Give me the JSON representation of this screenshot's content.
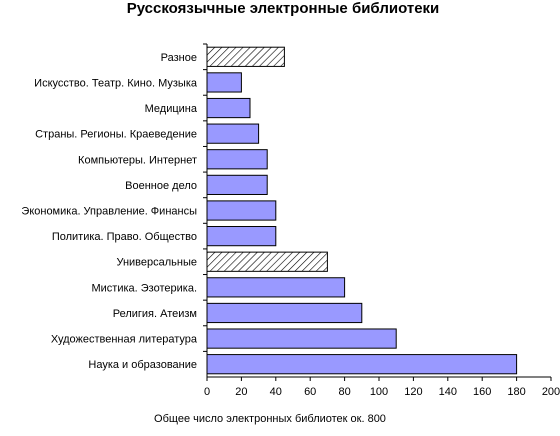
{
  "chart_data": {
    "type": "bar",
    "orientation": "horizontal",
    "title": "Русскоязычные электронные библиотеки",
    "xlabel": "Общее число электронных библиотек ок. 800",
    "ylabel": "",
    "xlim": [
      0,
      200
    ],
    "xticks": [
      0,
      20,
      40,
      60,
      80,
      100,
      120,
      140,
      160,
      180,
      200
    ],
    "grid": false,
    "legend": "none",
    "categories": [
      "Разное",
      "Искусство. Театр. Кино. Музыка",
      "Медицина",
      "Страны. Регионы. Краеведение",
      "Компьютеры. Интернет",
      "Военное дело",
      "Экономика. Управление. Финансы",
      "Политика. Право. Общество",
      "Универсальные",
      "Мистика. Эзотерика.",
      "Религия. Атеизм",
      "Художественная литература",
      "Наука и образование"
    ],
    "values": [
      45,
      20,
      25,
      30,
      35,
      35,
      40,
      40,
      70,
      80,
      90,
      110,
      180
    ],
    "bar_fill": [
      "hatched",
      "solid",
      "solid",
      "solid",
      "solid",
      "solid",
      "solid",
      "solid",
      "hatched",
      "solid",
      "solid",
      "solid",
      "solid"
    ],
    "colors": {
      "bar": "#9999ff",
      "hatch": "#000000",
      "axis": "#000000"
    }
  }
}
